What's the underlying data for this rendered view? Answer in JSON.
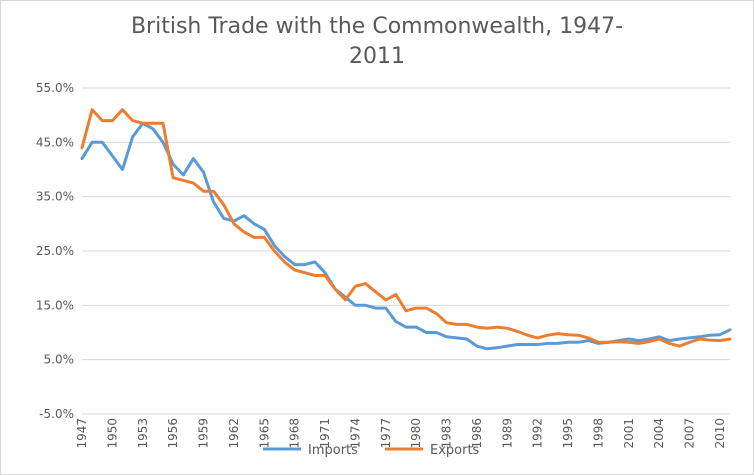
{
  "chart_data": {
    "type": "line",
    "title_line1": "British Trade with the Commonwealth, 1947-",
    "title_line2": "2011",
    "xlabel": "",
    "ylabel": "",
    "x_start": 1947,
    "x_end": 2011,
    "ylim": [
      -5,
      55
    ],
    "y_ticks": [
      -5,
      5,
      15,
      25,
      35,
      45,
      55
    ],
    "y_tick_labels": [
      "-5.0%",
      "5.0%",
      "15.0%",
      "25.0%",
      "35.0%",
      "45.0%",
      "55.0%"
    ],
    "x_ticks": [
      1947,
      1950,
      1953,
      1956,
      1959,
      1962,
      1965,
      1968,
      1971,
      1974,
      1977,
      1980,
      1983,
      1986,
      1989,
      1992,
      1995,
      1998,
      2001,
      2004,
      2007,
      2010
    ],
    "grid": "horizontal",
    "legend": "bottom",
    "x": [
      1947,
      1948,
      1949,
      1950,
      1951,
      1952,
      1953,
      1954,
      1955,
      1956,
      1957,
      1958,
      1959,
      1960,
      1961,
      1962,
      1963,
      1964,
      1965,
      1966,
      1967,
      1968,
      1969,
      1970,
      1971,
      1972,
      1973,
      1974,
      1975,
      1976,
      1977,
      1978,
      1979,
      1980,
      1981,
      1982,
      1983,
      1984,
      1985,
      1986,
      1987,
      1988,
      1989,
      1990,
      1991,
      1992,
      1993,
      1994,
      1995,
      1996,
      1997,
      1998,
      1999,
      2000,
      2001,
      2002,
      2003,
      2004,
      2005,
      2006,
      2007,
      2008,
      2009,
      2010,
      2011
    ],
    "series": [
      {
        "name": "Imports",
        "color": "#5b9bd5",
        "values": [
          42,
          45,
          45,
          42.5,
          40,
          46,
          48.5,
          47.5,
          45,
          41,
          39,
          42,
          39.5,
          34,
          31,
          30.5,
          31.5,
          30,
          29,
          26,
          24,
          22.5,
          22.5,
          23,
          21,
          18,
          16.5,
          15,
          15,
          14.5,
          14.5,
          12,
          11,
          11,
          10,
          10,
          9.2,
          9,
          8.8,
          7.5,
          7,
          7.2,
          7.5,
          7.8,
          7.8,
          7.8,
          8,
          8,
          8.2,
          8.2,
          8.5,
          8,
          8.2,
          8.5,
          8.8,
          8.5,
          8.8,
          9.2,
          8.5,
          8.8,
          9,
          9.2,
          9.5,
          9.6,
          10.5
        ]
      },
      {
        "name": "Exports",
        "color": "#ed7d31",
        "values": [
          44,
          51,
          49,
          49,
          51,
          49,
          48.5,
          48.5,
          48.5,
          38.5,
          38,
          37.5,
          36,
          36,
          33.5,
          30,
          28.5,
          27.5,
          27.5,
          25,
          23,
          21.5,
          21,
          20.5,
          20.5,
          18,
          16,
          18.5,
          19,
          17.5,
          16,
          17,
          14,
          14.5,
          14.5,
          13.5,
          11.8,
          11.5,
          11.5,
          11,
          10.8,
          11,
          10.8,
          10.2,
          9.5,
          9,
          9.5,
          9.8,
          9.6,
          9.5,
          9,
          8.2,
          8.2,
          8.3,
          8.2,
          8,
          8.3,
          8.8,
          8,
          7.5,
          8.2,
          8.8,
          8.6,
          8.5,
          8.8
        ]
      }
    ]
  }
}
